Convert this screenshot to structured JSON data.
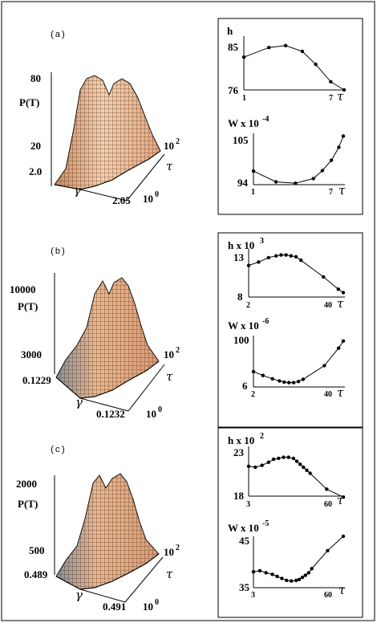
{
  "figure": {
    "panels": [
      {
        "label": "(a)",
        "surface": {
          "z_label": "P(T)",
          "z_ticks": [
            "80",
            "20"
          ],
          "gamma_label": "γ",
          "gamma_ticks": [
            "2.0",
            "2.05"
          ],
          "tau_label": "τ",
          "tau_ticks": [
            "10",
            "10"
          ],
          "tau_exponents": [
            "2",
            "0"
          ]
        },
        "plots": [
          {
            "ylabel": "h",
            "ylabel_exp": "",
            "xlabel": "τ",
            "y_ticks": [
              "85",
              "76"
            ],
            "x_ticks": [
              "1",
              "7"
            ]
          },
          {
            "ylabel": "W x 10",
            "ylabel_exp": "-4",
            "xlabel": "τ",
            "y_ticks": [
              "105",
              "94"
            ],
            "x_ticks": [
              "1",
              "7"
            ]
          }
        ]
      },
      {
        "label": "(b)",
        "surface": {
          "z_label": "P(T)",
          "z_ticks": [
            "10000",
            "3000"
          ],
          "gamma_label": "γ",
          "gamma_ticks": [
            "0.1229",
            "0.1232"
          ],
          "tau_label": "τ",
          "tau_ticks": [
            "10",
            "10"
          ],
          "tau_exponents": [
            "2",
            "0"
          ]
        },
        "plots": [
          {
            "ylabel": "h x 10",
            "ylabel_exp": "3",
            "xlabel": "τ",
            "y_ticks": [
              "13",
              "8"
            ],
            "x_ticks": [
              "2",
              "40"
            ]
          },
          {
            "ylabel": "W x 10",
            "ylabel_exp": "-6",
            "xlabel": "τ",
            "y_ticks": [
              "100",
              "6"
            ],
            "x_ticks": [
              "2",
              "40"
            ]
          }
        ]
      },
      {
        "label": "(c)",
        "surface": {
          "z_label": "P(T)",
          "z_ticks": [
            "2000",
            "500"
          ],
          "gamma_label": "γ",
          "gamma_ticks": [
            "0.489",
            "0.491"
          ],
          "tau_label": "τ",
          "tau_ticks": [
            "10",
            "10"
          ],
          "tau_exponents": [
            "2",
            "0"
          ]
        },
        "plots": [
          {
            "ylabel": "h x 10",
            "ylabel_exp": "2",
            "xlabel": "τ",
            "y_ticks": [
              "23",
              "18"
            ],
            "x_ticks": [
              "3",
              "60"
            ]
          },
          {
            "ylabel": "W x 10",
            "ylabel_exp": "-5",
            "xlabel": "τ",
            "y_ticks": [
              "45",
              "35"
            ],
            "x_ticks": [
              "3",
              "60"
            ]
          }
        ]
      }
    ]
  },
  "chart_data": [
    {
      "type": "line",
      "panel": "(a)",
      "ylabel": "h",
      "xlabel": "τ",
      "x": [
        1,
        2.5,
        3.5,
        4.5,
        5.3,
        6.2,
        7
      ],
      "y": [
        82.8,
        84.8,
        85.2,
        84.0,
        81.3,
        77.7,
        76.0
      ],
      "xlim": [
        1,
        7
      ],
      "ylim": [
        76,
        87
      ]
    },
    {
      "type": "line",
      "panel": "(a)",
      "ylabel": "W x 10^-4",
      "xlabel": "τ",
      "x": [
        1,
        2.5,
        3.8,
        5.0,
        5.6,
        6.2,
        6.7,
        7
      ],
      "y": [
        96.9,
        94.6,
        94.3,
        95.3,
        97.0,
        99.2,
        102.0,
        104.4
      ],
      "xlim": [
        1,
        7
      ],
      "ylim": [
        94,
        105
      ]
    },
    {
      "type": "line",
      "panel": "(b)",
      "ylabel": "h x 10^3",
      "xlabel": "τ",
      "x": [
        2,
        6,
        10,
        13,
        15,
        17,
        19,
        21,
        23,
        32,
        38,
        40
      ],
      "y": [
        11.6,
        12.0,
        12.5,
        12.7,
        12.8,
        12.8,
        12.7,
        12.6,
        12.2,
        10.3,
        8.9,
        8.5
      ],
      "xlim": [
        2,
        40
      ],
      "ylim": [
        8,
        13.5
      ]
    },
    {
      "type": "line",
      "panel": "(b)",
      "ylabel": "W x 10^-6",
      "xlabel": "τ",
      "x": [
        2,
        6,
        10,
        13,
        15,
        17,
        19,
        21,
        23,
        32,
        38,
        40
      ],
      "y": [
        34,
        27,
        21,
        17,
        15,
        14,
        14,
        16,
        20,
        45,
        77,
        90
      ],
      "xlim": [
        2,
        40
      ],
      "ylim": [
        6,
        100
      ]
    },
    {
      "type": "line",
      "panel": "(c)",
      "ylabel": "h x 10^2",
      "xlabel": "τ",
      "x": [
        3,
        7,
        11,
        15,
        18,
        21,
        24,
        27,
        30,
        32,
        34,
        36,
        38,
        40,
        50,
        60
      ],
      "y": [
        21.0,
        20.9,
        21.1,
        21.4,
        21.7,
        21.8,
        21.9,
        21.9,
        21.8,
        21.5,
        21.2,
        20.9,
        20.6,
        20.3,
        18.7,
        17.9
      ],
      "xlim": [
        3,
        60
      ],
      "ylim": [
        18,
        23
      ]
    },
    {
      "type": "line",
      "panel": "(c)",
      "ylabel": "W x 10^-5",
      "xlabel": "τ",
      "x": [
        3,
        7,
        11,
        15,
        18,
        21,
        24,
        27,
        30,
        32,
        34,
        36,
        38,
        40,
        50,
        60
      ],
      "y": [
        38.1,
        38.3,
        37.9,
        37.6,
        37.2,
        36.8,
        36.4,
        36.3,
        36.4,
        36.6,
        37.0,
        37.4,
        37.9,
        38.7,
        42.2,
        45.0
      ],
      "xlim": [
        3,
        60
      ],
      "ylim": [
        35,
        45
      ]
    }
  ]
}
